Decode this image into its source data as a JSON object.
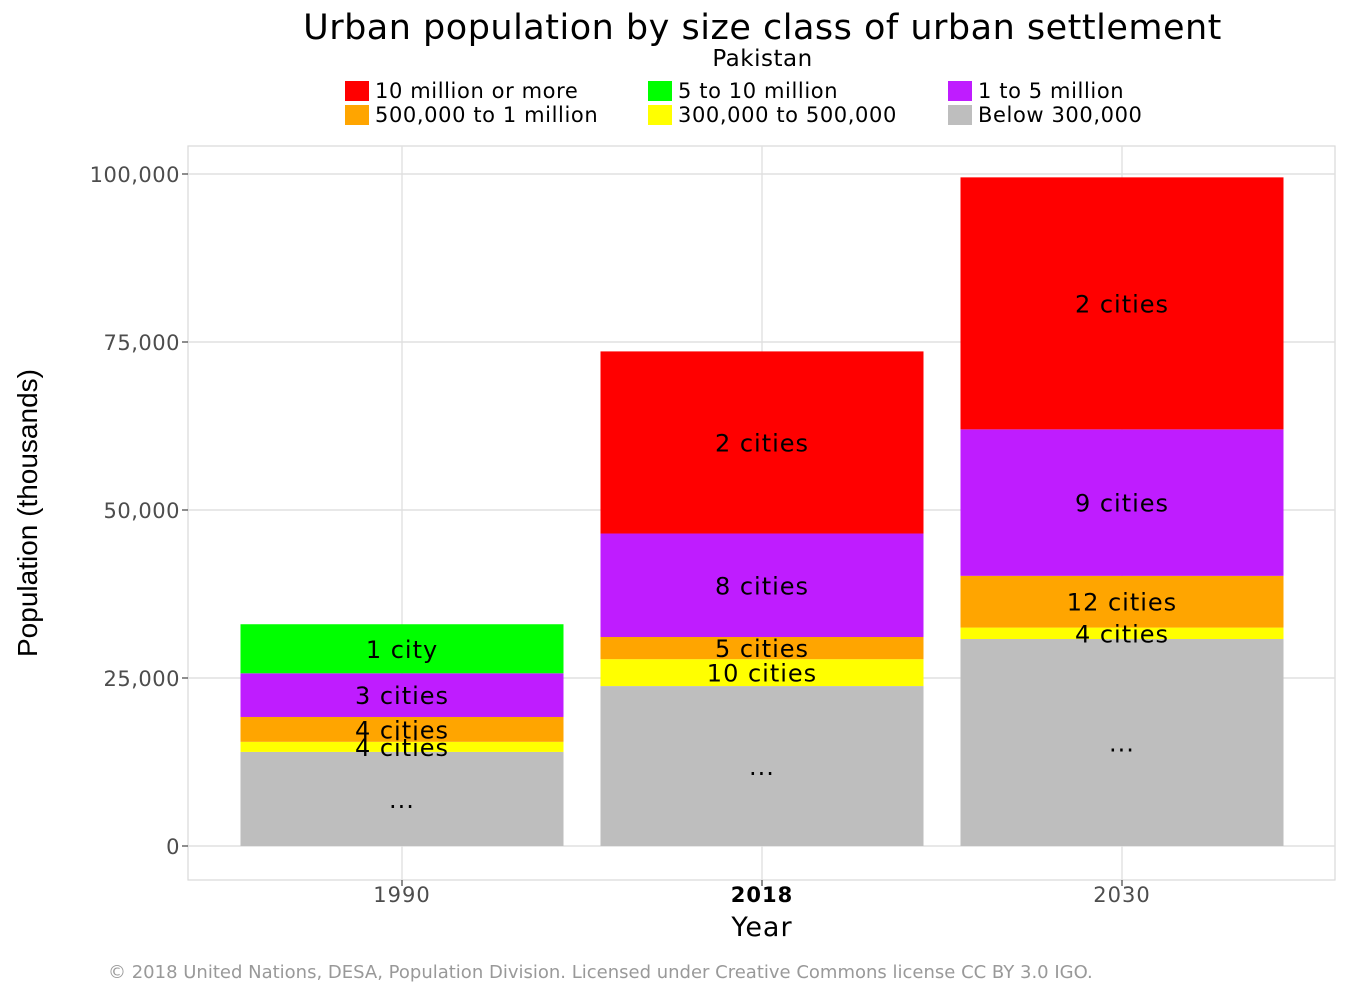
{
  "chart_data": {
    "type": "bar",
    "stacked": true,
    "title": "Urban population by size class of urban settlement",
    "subtitle": "Pakistan",
    "xlabel": "Year",
    "ylabel": "Population (thousands)",
    "ylim": [
      0,
      104000
    ],
    "yticks": [
      0,
      25000,
      50000,
      75000,
      100000
    ],
    "ytick_labels": [
      "0",
      "25,000",
      "50,000",
      "75,000",
      "100,000"
    ],
    "categories": [
      "1990",
      "2018",
      "2030"
    ],
    "highlight_category": "2018",
    "grid": true,
    "legend_position": "top",
    "series": [
      {
        "name": "Below 300,000",
        "color": "#bebebe",
        "values": [
          14000,
          23800,
          30800
        ],
        "labels": [
          "...",
          "...",
          "..."
        ]
      },
      {
        "name": "300,000 to 500,000",
        "color": "#ffff00",
        "values": [
          1500,
          4000,
          1700
        ],
        "labels": [
          "4 cities",
          "10 cities",
          "4 cities"
        ]
      },
      {
        "name": "500,000 to 1 million",
        "color": "#ffa500",
        "values": [
          3700,
          3300,
          7700
        ],
        "labels": [
          "4 cities",
          "5 cities",
          "12 cities"
        ]
      },
      {
        "name": "1 to 5 million",
        "color": "#bf1cff",
        "values": [
          6500,
          15400,
          21800
        ],
        "labels": [
          "3 cities",
          "8 cities",
          "9 cities"
        ]
      },
      {
        "name": "5 to 10 million",
        "color": "#00ff00",
        "values": [
          7300,
          0,
          0
        ],
        "labels": [
          "1 city",
          "",
          ""
        ]
      },
      {
        "name": "10 million or more",
        "color": "#ff0000",
        "values": [
          0,
          27100,
          37500
        ],
        "labels": [
          "",
          "2 cities",
          "2 cities"
        ]
      }
    ]
  },
  "legend_order": [
    "10 million or more",
    "5 to 10 million",
    "1 to 5 million",
    "500,000 to 1 million",
    "300,000 to 500,000",
    "Below 300,000"
  ],
  "credit": "© 2018 United Nations, DESA, Population Division. Licensed under Creative Commons license CC BY 3.0 IGO."
}
